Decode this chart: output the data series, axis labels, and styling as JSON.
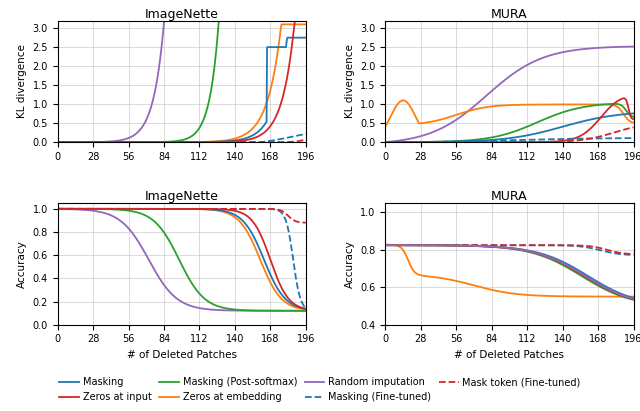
{
  "titles": [
    "ImageNette",
    "MURA",
    "ImageNette",
    "MURA"
  ],
  "xlim": [
    0,
    196
  ],
  "xticks": [
    0,
    28,
    56,
    84,
    112,
    140,
    168,
    196
  ],
  "ylabel_kl": "KL divergence",
  "ylabel_acc": "Accuracy",
  "xlabel": "# of Deleted Patches",
  "colors": {
    "masking": "#1f77b4",
    "zeros_input": "#d62728",
    "masking_post": "#2ca02c",
    "zeros_embed": "#ff7f0e",
    "random": "#9467bd",
    "masking_ft": "#1f77b4",
    "mask_token_ft": "#d62728"
  }
}
